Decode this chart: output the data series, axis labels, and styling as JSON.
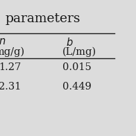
{
  "title": "parameters",
  "col1_header_italic": "n",
  "col1_header_unit": "mg/g)",
  "col2_header_italic": "b",
  "col2_header_unit": "(L/mg)",
  "row1": [
    "1.27",
    "0.015"
  ],
  "row2": [
    "2.31",
    "0.449"
  ],
  "bg_color": "#dcdcdc",
  "text_color": "#1a1a1a",
  "font_size": 10.5,
  "title_font_size": 13.5
}
